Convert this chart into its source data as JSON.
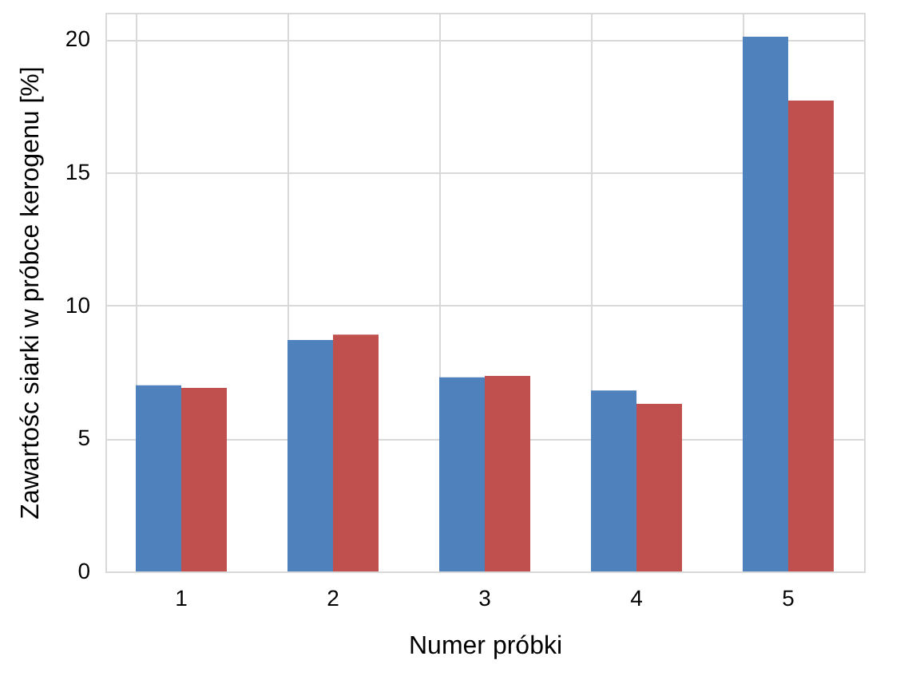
{
  "chart_data": {
    "type": "bar",
    "xlabel": "Numer próbki",
    "ylabel": "Zawartośc siarki w próbce kerogenu [%]",
    "categories": [
      "1",
      "2",
      "3",
      "4",
      "5"
    ],
    "series": [
      {
        "color": "#4f81bd",
        "values": [
          7.0,
          8.7,
          7.3,
          6.8,
          20.1
        ]
      },
      {
        "color": "#c0504d",
        "values": [
          6.9,
          8.9,
          7.35,
          6.3,
          17.7
        ]
      }
    ],
    "ylim": [
      0,
      21
    ],
    "yticks": [
      0,
      5,
      10,
      15,
      20
    ],
    "grid": true
  }
}
